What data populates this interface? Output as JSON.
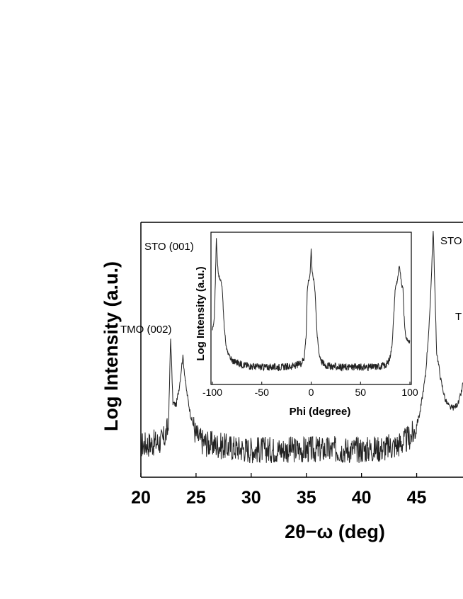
{
  "chart_data": [
    {
      "type": "line",
      "title": "",
      "xlabel": "2θ−ω (deg)",
      "ylabel": "Log Intensity (a.u.)",
      "xlim": [
        20,
        50
      ],
      "x_ticks": [
        20,
        25,
        30,
        35,
        40,
        45
      ],
      "y_tick_labels": [],
      "grid": false,
      "series": [
        {
          "x": [
            20,
            21,
            22,
            22.5,
            22.7,
            22.9,
            23.2,
            23.5,
            23.8,
            24.1,
            24.5,
            25.0,
            25.5,
            26,
            28,
            30,
            32,
            34,
            36,
            38,
            40,
            42,
            43,
            44,
            44.8,
            45.3,
            45.8,
            46.2,
            46.5,
            46.8,
            47.2,
            47.6,
            48.0,
            48.4,
            48.8,
            49.1,
            49.3,
            49.6,
            50
          ],
          "y": [
            1.2,
            1.25,
            1.35,
            1.9,
            5.6,
            2.9,
            2.8,
            3.6,
            4.8,
            3.5,
            2.4,
            1.6,
            1.35,
            1.25,
            1.1,
            1.0,
            1.0,
            1.0,
            1.0,
            1.0,
            1.0,
            1.05,
            1.15,
            1.35,
            1.7,
            2.5,
            4.0,
            6.5,
            10.0,
            5.0,
            3.8,
            3.0,
            2.7,
            2.7,
            2.9,
            3.4,
            4.1,
            3.1,
            2.4
          ]
        }
      ],
      "annotations": [
        "STO (001)",
        "TMO (002)",
        "STO",
        "T"
      ]
    },
    {
      "type": "line",
      "title": "",
      "xlabel": "Phi (degree)",
      "ylabel": "Log Intensity (a.u.)",
      "xlim": [
        -100,
        100
      ],
      "x_ticks": [
        -100,
        -50,
        0,
        50,
        100
      ],
      "y_tick_labels": [],
      "grid": false,
      "series": [
        {
          "x": [
            -100,
            -99,
            -98,
            -97,
            -96,
            -95,
            -94,
            -93,
            -92,
            -91,
            -90,
            -88,
            -86,
            -84,
            -80,
            -70,
            -60,
            -50,
            -40,
            -30,
            -20,
            -15,
            -10,
            -7,
            -5,
            -4,
            -3,
            -2,
            -1,
            0,
            1,
            2,
            3,
            4,
            6,
            8,
            11,
            15,
            20,
            30,
            40,
            50,
            60,
            70,
            75,
            78,
            80,
            82,
            84,
            85,
            86,
            87,
            88,
            89,
            90,
            91,
            92,
            93,
            94,
            95,
            96,
            98,
            100
          ],
          "y": [
            3.3,
            3.5,
            3.9,
            6.2,
            8.8,
            7.5,
            6.6,
            6.5,
            6.3,
            6.2,
            5.7,
            3.5,
            2.2,
            1.8,
            1.4,
            1.15,
            1.05,
            1.0,
            1.0,
            1.0,
            1.05,
            1.1,
            1.25,
            1.6,
            3.0,
            5.5,
            6.2,
            6.3,
            6.8,
            8.2,
            6.9,
            6.4,
            6.2,
            5.6,
            3.0,
            1.8,
            1.3,
            1.1,
            1.05,
            1.0,
            1.0,
            1.0,
            1.0,
            1.05,
            1.1,
            1.3,
            1.6,
            2.4,
            4.5,
            5.7,
            6.0,
            6.2,
            6.5,
            7.1,
            6.9,
            6.3,
            5.9,
            5.8,
            4.2,
            3.3,
            2.8,
            2.6,
            2.5
          ]
        }
      ]
    }
  ]
}
